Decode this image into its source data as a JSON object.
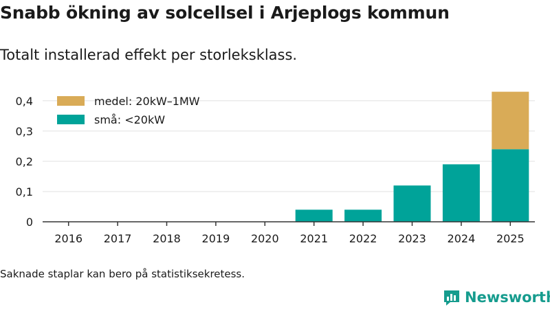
{
  "title": "Snabb ökning av solcellsel i Arjeplogs kommun",
  "subtitle": "Totalt installerad effekt per storleksklass.",
  "footnote": "Saknade staplar kan bero på statistiksekretess.",
  "brand": {
    "name": "Newsworthy",
    "icon": "newsworthy-logo-icon",
    "color": "#169c8e"
  },
  "chart_data": {
    "type": "bar",
    "stacked": true,
    "categories": [
      "2016",
      "2017",
      "2018",
      "2019",
      "2020",
      "2021",
      "2022",
      "2023",
      "2024",
      "2025"
    ],
    "series": [
      {
        "name": "små: <20kW",
        "color": "#00a399",
        "values": [
          null,
          null,
          null,
          null,
          null,
          0.04,
          0.04,
          0.12,
          0.19,
          0.24
        ]
      },
      {
        "name": "medel: 20kW–1MW",
        "color": "#d9ab57",
        "values": [
          null,
          null,
          null,
          null,
          null,
          null,
          null,
          null,
          null,
          0.19
        ]
      }
    ],
    "legend_order": [
      1,
      0
    ],
    "ylim": [
      0,
      0.42
    ],
    "yticks": [
      0,
      0.1,
      0.2,
      0.3,
      0.4
    ],
    "ytick_labels": [
      "0",
      "0,1",
      "0,2",
      "0,3",
      "0,4"
    ],
    "grid": "horizontal",
    "legend_position": "top-left"
  }
}
